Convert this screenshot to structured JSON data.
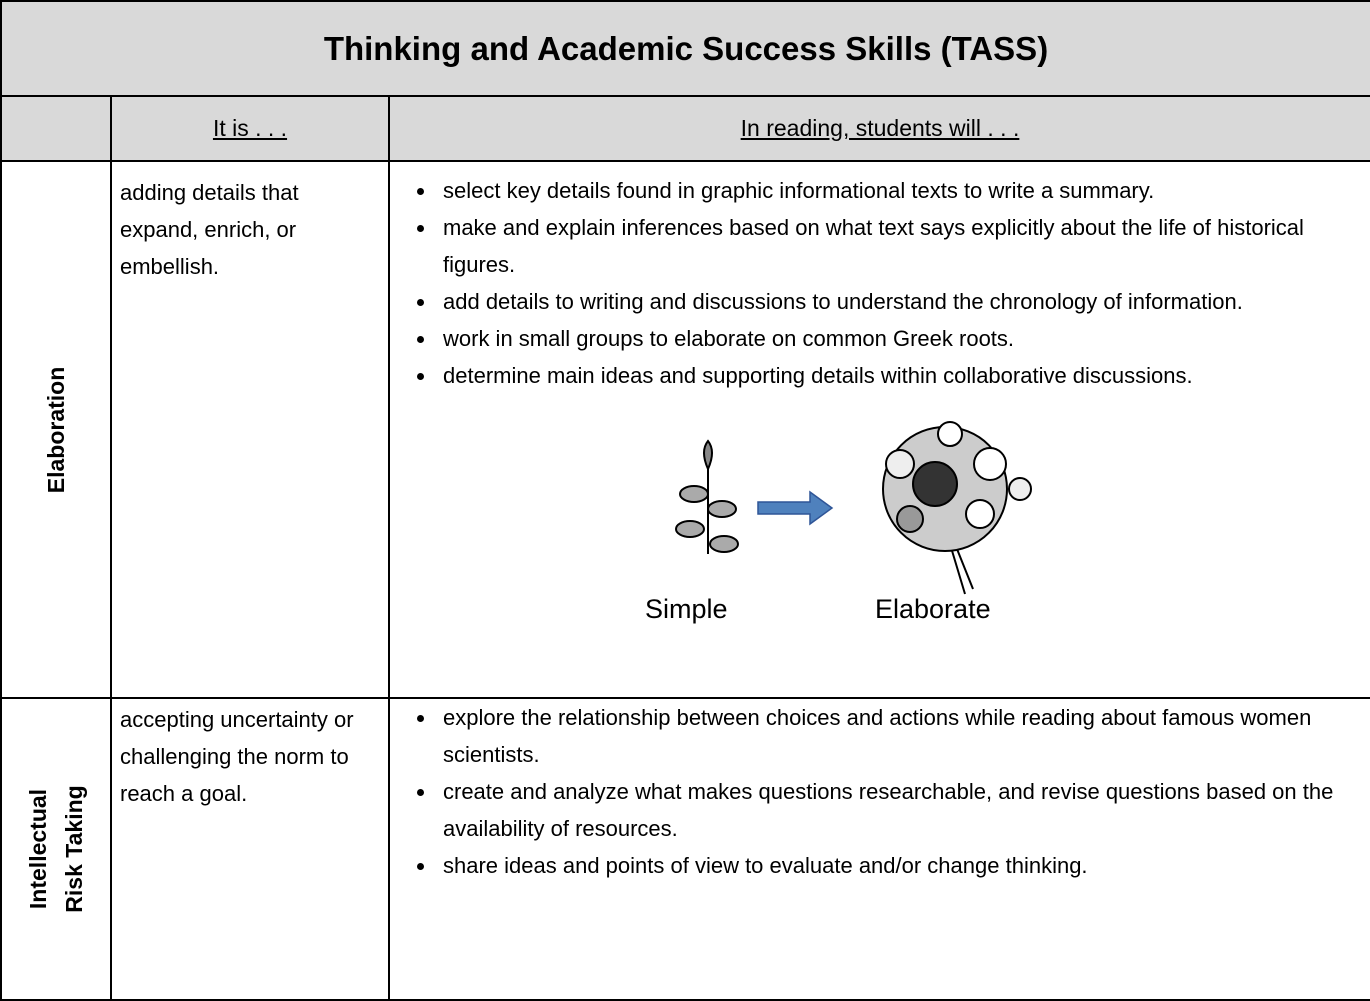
{
  "title": "Thinking and Academic Success Skills (TASS)",
  "header": [
    "It is . . .",
    "In reading, students will . . ."
  ],
  "rows": [
    {
      "skill": [
        "Elaboration"
      ],
      "definition": "adding details that expand, enrich, or embellish.",
      "bullets": [
        "select key details found in graphic informational texts to write a summary.",
        "make and explain inferences based on what text says explicitly about the life of historical figures.",
        "add details to writing and discussions to understand the chronology of information.",
        "work in small groups to elaborate on common Greek roots.",
        "determine main ideas and supporting details within collaborative discussions."
      ],
      "image_labels": [
        "Simple",
        "Elaborate"
      ]
    },
    {
      "skill": [
        "Intellectual",
        "Risk Taking"
      ],
      "definition": "accepting uncertainty or challenging the norm to reach a goal.",
      "bullets": [
        "explore the relationship between choices and actions while reading about famous women scientists.",
        "create and analyze what makes questions researchable, and revise questions based on the availability of resources.",
        "share ideas and points of view to evaluate and/or change thinking."
      ]
    }
  ]
}
